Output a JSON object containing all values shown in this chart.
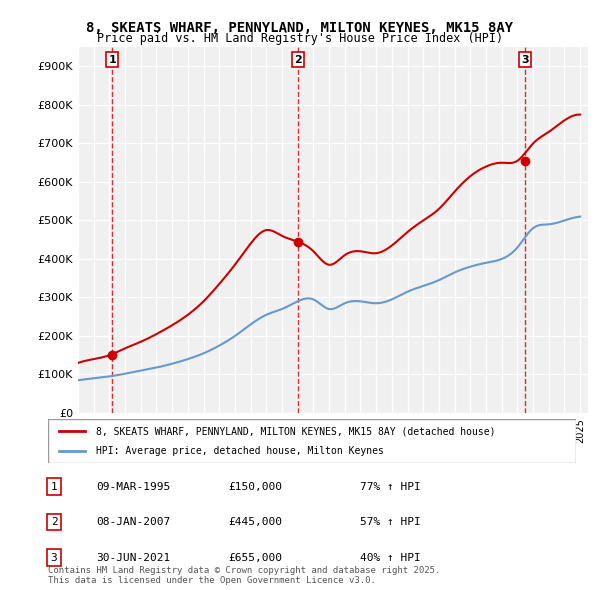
{
  "title": "8, SKEATS WHARF, PENNYLAND, MILTON KEYNES, MK15 8AY",
  "subtitle": "Price paid vs. HM Land Registry's House Price Index (HPI)",
  "ylabel": "",
  "ylim": [
    0,
    950000
  ],
  "yticks": [
    0,
    100000,
    200000,
    300000,
    400000,
    500000,
    600000,
    700000,
    800000,
    900000
  ],
  "ytick_labels": [
    "£0",
    "£100K",
    "£200K",
    "£300K",
    "£400K",
    "£500K",
    "£600K",
    "£700K",
    "£800K",
    "£900K"
  ],
  "bg_color": "#ffffff",
  "plot_bg_color": "#f0f0f0",
  "grid_color": "#ffffff",
  "red_color": "#cc0000",
  "blue_color": "#6699cc",
  "sale_dates": [
    1995.19,
    2007.03,
    2021.5
  ],
  "sale_prices": [
    150000,
    445000,
    655000
  ],
  "sale_labels": [
    "1",
    "2",
    "3"
  ],
  "legend_red": "8, SKEATS WHARF, PENNYLAND, MILTON KEYNES, MK15 8AY (detached house)",
  "legend_blue": "HPI: Average price, detached house, Milton Keynes",
  "table_rows": [
    [
      "1",
      "09-MAR-1995",
      "£150,000",
      "77% ↑ HPI"
    ],
    [
      "2",
      "08-JAN-2007",
      "£445,000",
      "57% ↑ HPI"
    ],
    [
      "3",
      "30-JUN-2021",
      "£655,000",
      "40% ↑ HPI"
    ]
  ],
  "footer": "Contains HM Land Registry data © Crown copyright and database right 2025.\nThis data is licensed under the Open Government Licence v3.0.",
  "hpi_years": [
    1993,
    1994,
    1995,
    1996,
    1997,
    1998,
    1999,
    2000,
    2001,
    2002,
    2003,
    2004,
    2005,
    2006,
    2007,
    2008,
    2009,
    2010,
    2011,
    2012,
    2013,
    2014,
    2015,
    2016,
    2017,
    2018,
    2019,
    2020,
    2021,
    2022,
    2023,
    2024,
    2025
  ],
  "hpi_values": [
    85000,
    90000,
    95000,
    102000,
    110000,
    118000,
    128000,
    140000,
    155000,
    175000,
    200000,
    230000,
    255000,
    270000,
    290000,
    295000,
    270000,
    285000,
    290000,
    285000,
    295000,
    315000,
    330000,
    345000,
    365000,
    380000,
    390000,
    400000,
    430000,
    480000,
    490000,
    500000,
    510000
  ],
  "red_years": [
    1993,
    1994,
    1995,
    1996,
    1997,
    1998,
    1999,
    2000,
    2001,
    2002,
    2003,
    2004,
    2005,
    2006,
    2007,
    2008,
    2009,
    2010,
    2011,
    2012,
    2013,
    2014,
    2015,
    2016,
    2017,
    2018,
    2019,
    2020,
    2021,
    2022,
    2023,
    2024,
    2025
  ],
  "red_values": [
    130000,
    140000,
    150000,
    168000,
    185000,
    205000,
    228000,
    255000,
    290000,
    335000,
    385000,
    440000,
    475000,
    460000,
    445000,
    420000,
    385000,
    410000,
    420000,
    415000,
    435000,
    470000,
    500000,
    530000,
    575000,
    615000,
    640000,
    650000,
    655000,
    700000,
    730000,
    760000,
    775000
  ]
}
